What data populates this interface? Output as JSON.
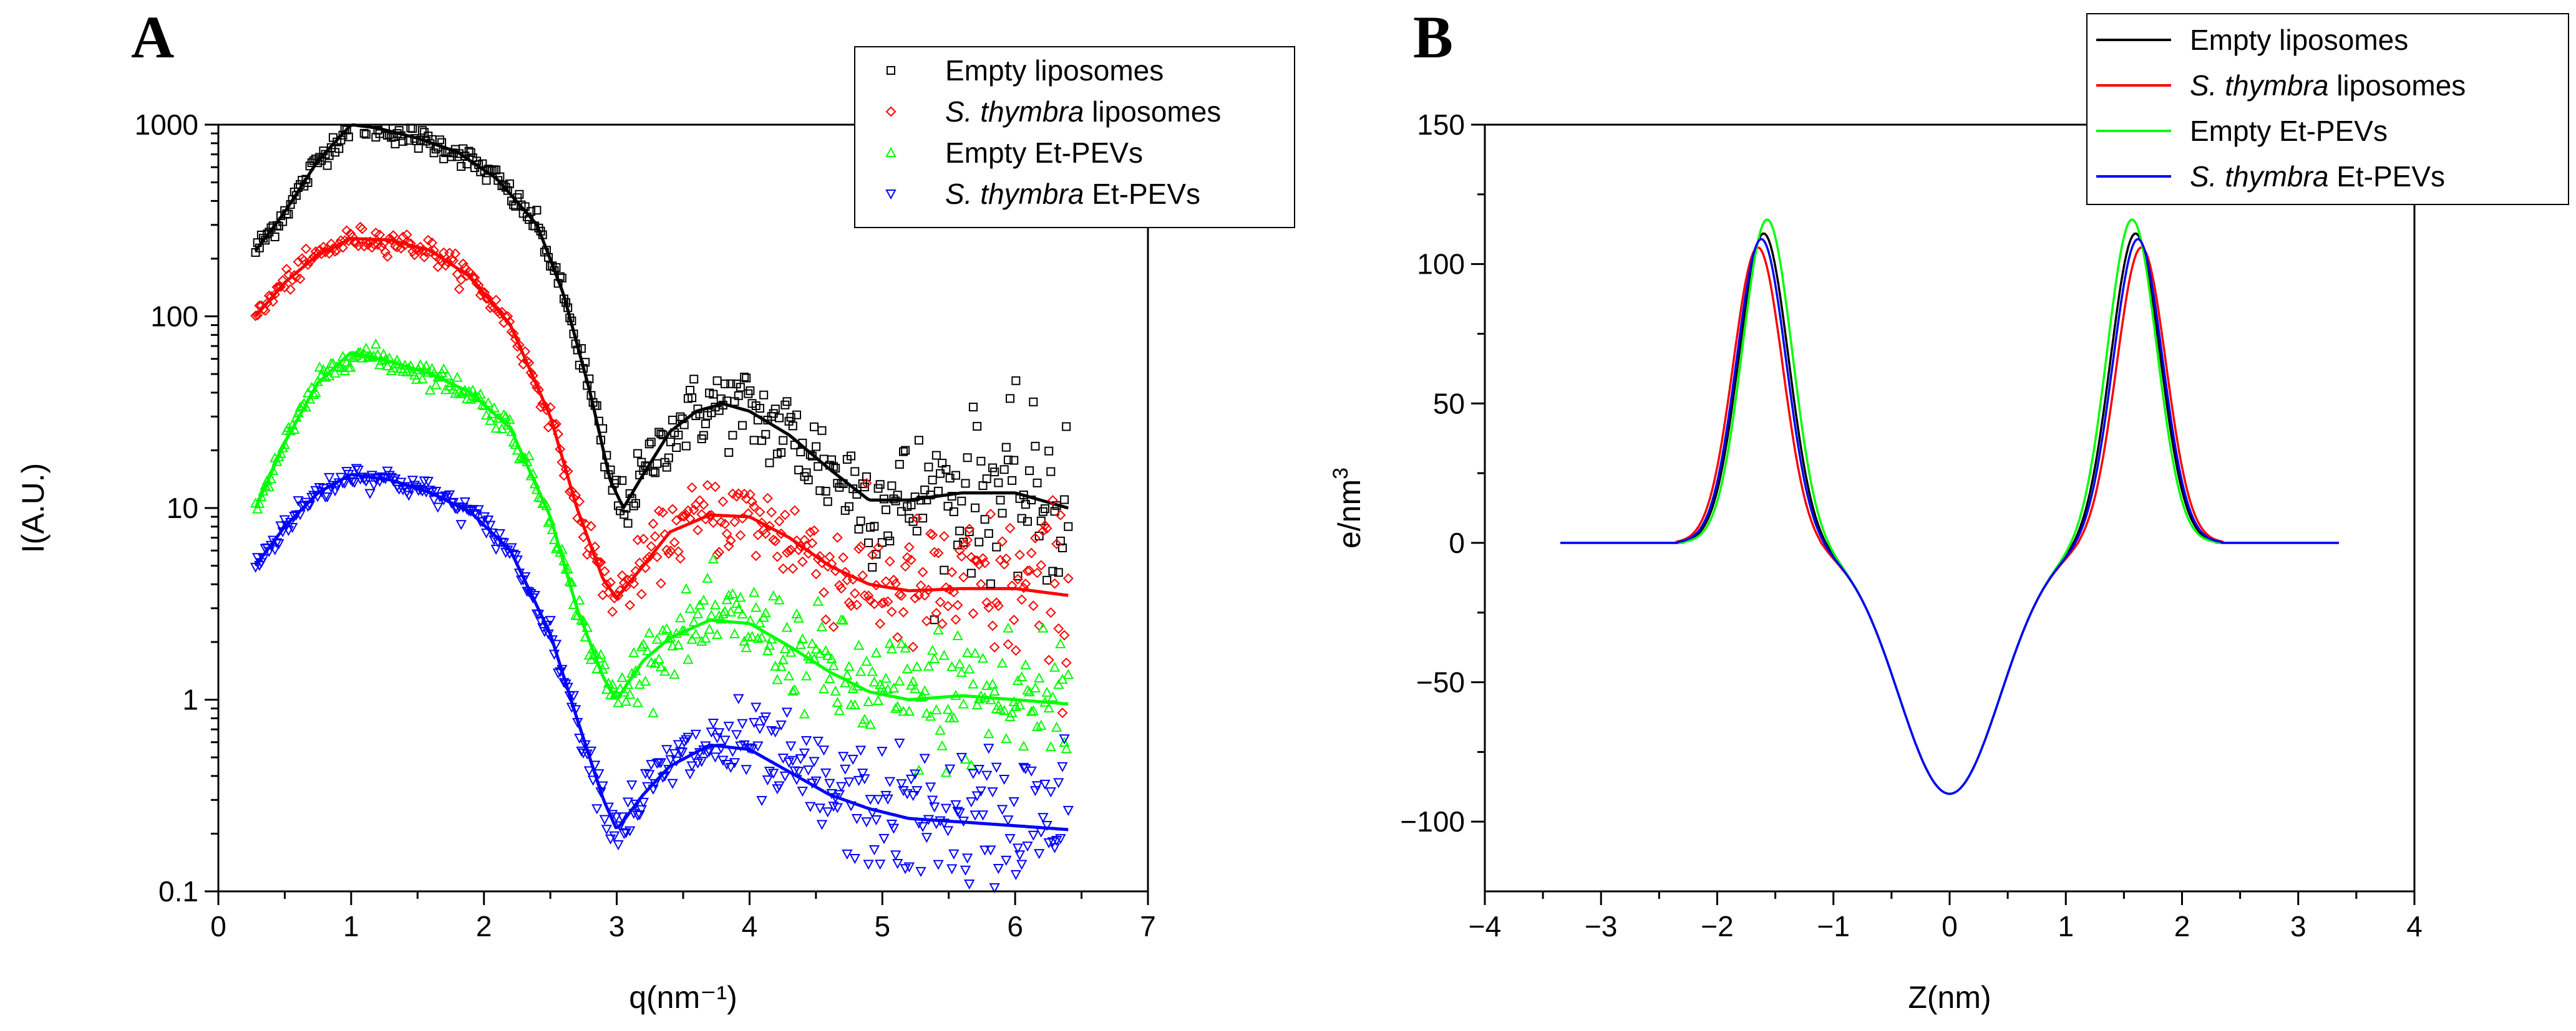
{
  "chart_data": [
    {
      "type": "scatter",
      "panel_label": "A",
      "xlabel": "q(nm⁻¹)",
      "ylabel": "I(A.U.)",
      "xlim": [
        0,
        7
      ],
      "ylim": [
        0.1,
        1000
      ],
      "y_scale": "log",
      "x_ticks": [
        "0",
        "1",
        "2",
        "3",
        "4",
        "5",
        "6",
        "7"
      ],
      "y_ticks": [
        "0.1",
        "1",
        "10",
        "100",
        "1000"
      ],
      "legend_position": "top-right",
      "series": [
        {
          "name_italic": "",
          "name_rest": "Empty liposomes",
          "color": "#000000",
          "marker": "square",
          "fit": [
            [
              0.28,
              220
            ],
            [
              0.5,
              350
            ],
            [
              0.75,
              650
            ],
            [
              1.0,
              1000
            ],
            [
              1.2,
              960
            ],
            [
              1.5,
              850
            ],
            [
              1.8,
              720
            ],
            [
              2.1,
              520
            ],
            [
              2.4,
              300
            ],
            [
              2.6,
              130
            ],
            [
              2.8,
              40
            ],
            [
              2.95,
              14
            ],
            [
              3.05,
              10
            ],
            [
              3.2,
              15
            ],
            [
              3.4,
              25
            ],
            [
              3.6,
              32
            ],
            [
              3.8,
              35
            ],
            [
              4.0,
              32
            ],
            [
              4.3,
              24
            ],
            [
              4.6,
              16
            ],
            [
              4.9,
              11
            ],
            [
              5.2,
              11
            ],
            [
              5.6,
              12
            ],
            [
              6.0,
              12
            ],
            [
              6.4,
              10
            ]
          ]
        },
        {
          "name_italic": "S. thymbra",
          "name_rest": " liposomes",
          "color": "#ff0000",
          "marker": "diamond",
          "fit": [
            [
              0.28,
              100
            ],
            [
              0.5,
              150
            ],
            [
              0.75,
              210
            ],
            [
              1.0,
              255
            ],
            [
              1.3,
              250
            ],
            [
              1.6,
              220
            ],
            [
              1.9,
              160
            ],
            [
              2.2,
              90
            ],
            [
              2.5,
              30
            ],
            [
              2.7,
              10
            ],
            [
              2.9,
              4.2
            ],
            [
              3.0,
              3.4
            ],
            [
              3.2,
              5
            ],
            [
              3.4,
              7.5
            ],
            [
              3.7,
              9.2
            ],
            [
              4.0,
              9
            ],
            [
              4.3,
              7
            ],
            [
              4.6,
              5
            ],
            [
              4.9,
              4
            ],
            [
              5.2,
              3.7
            ],
            [
              5.6,
              3.8
            ],
            [
              6.0,
              3.8
            ],
            [
              6.4,
              3.5
            ]
          ]
        },
        {
          "name_italic": "",
          "name_rest": "Empty Et-PEVs",
          "color": "#00ff00",
          "marker": "triangle-up",
          "fit": [
            [
              0.28,
              10
            ],
            [
              0.5,
              22
            ],
            [
              0.75,
              45
            ],
            [
              1.0,
              65
            ],
            [
              1.3,
              58
            ],
            [
              1.6,
              50
            ],
            [
              1.9,
              40
            ],
            [
              2.2,
              26
            ],
            [
              2.5,
              9
            ],
            [
              2.7,
              3
            ],
            [
              2.9,
              1.3
            ],
            [
              3.0,
              1.0
            ],
            [
              3.2,
              1.6
            ],
            [
              3.4,
              2.1
            ],
            [
              3.7,
              2.6
            ],
            [
              4.0,
              2.5
            ],
            [
              4.3,
              1.9
            ],
            [
              4.6,
              1.4
            ],
            [
              4.9,
              1.1
            ],
            [
              5.2,
              1.0
            ],
            [
              5.6,
              1.05
            ],
            [
              6.0,
              1.0
            ],
            [
              6.4,
              0.95
            ]
          ]
        },
        {
          "name_italic": "S. thymbra",
          "name_rest": " Et-PEVs",
          "color": "#0000ff",
          "marker": "triangle-down",
          "fit": [
            [
              0.28,
              5
            ],
            [
              0.5,
              8
            ],
            [
              0.75,
              12
            ],
            [
              1.0,
              15
            ],
            [
              1.3,
              14
            ],
            [
              1.6,
              12
            ],
            [
              1.9,
              9.5
            ],
            [
              2.2,
              6
            ],
            [
              2.5,
              2.2
            ],
            [
              2.7,
              0.8
            ],
            [
              2.9,
              0.3
            ],
            [
              3.0,
              0.21
            ],
            [
              3.2,
              0.32
            ],
            [
              3.4,
              0.45
            ],
            [
              3.7,
              0.58
            ],
            [
              4.0,
              0.55
            ],
            [
              4.3,
              0.42
            ],
            [
              4.6,
              0.32
            ],
            [
              4.9,
              0.27
            ],
            [
              5.2,
              0.24
            ],
            [
              5.6,
              0.23
            ],
            [
              6.0,
              0.22
            ],
            [
              6.4,
              0.21
            ]
          ]
        }
      ]
    },
    {
      "type": "line",
      "panel_label": "B",
      "xlabel": "Z(nm)",
      "ylabel_base": "e/nm",
      "ylabel_sup": "3",
      "xlim": [
        -4,
        4
      ],
      "ylim": [
        -125,
        150
      ],
      "x_ticks": [
        "−4",
        "−3",
        "−2",
        "−1",
        "0",
        "1",
        "2",
        "3",
        "4"
      ],
      "y_ticks": [
        "−100",
        "−50",
        "0",
        "50",
        "100",
        "150"
      ],
      "legend_position": "top-right",
      "series": [
        {
          "name_italic": "",
          "name_rest": "Empty liposomes",
          "color": "#000000",
          "z_range": [
            -3.35,
            3.35
          ],
          "peak_z": 1.6,
          "peak": 111,
          "center": -90
        },
        {
          "name_italic": "S. thymbra",
          "name_rest": " liposomes",
          "color": "#ff0000",
          "z_range": [
            -3.35,
            3.35
          ],
          "peak_z": 1.65,
          "peak": 106,
          "center": -90
        },
        {
          "name_italic": "",
          "name_rest": "Empty Et-PEVs",
          "color": "#00ff00",
          "z_range": [
            -3.35,
            3.35
          ],
          "peak_z": 1.57,
          "peak": 116,
          "center": -90
        },
        {
          "name_italic": "S. thymbra",
          "name_rest": " Et-PEVs",
          "color": "#0000ff",
          "z_range": [
            -3.35,
            3.35
          ],
          "peak_z": 1.62,
          "peak": 109,
          "center": -90
        }
      ]
    }
  ]
}
